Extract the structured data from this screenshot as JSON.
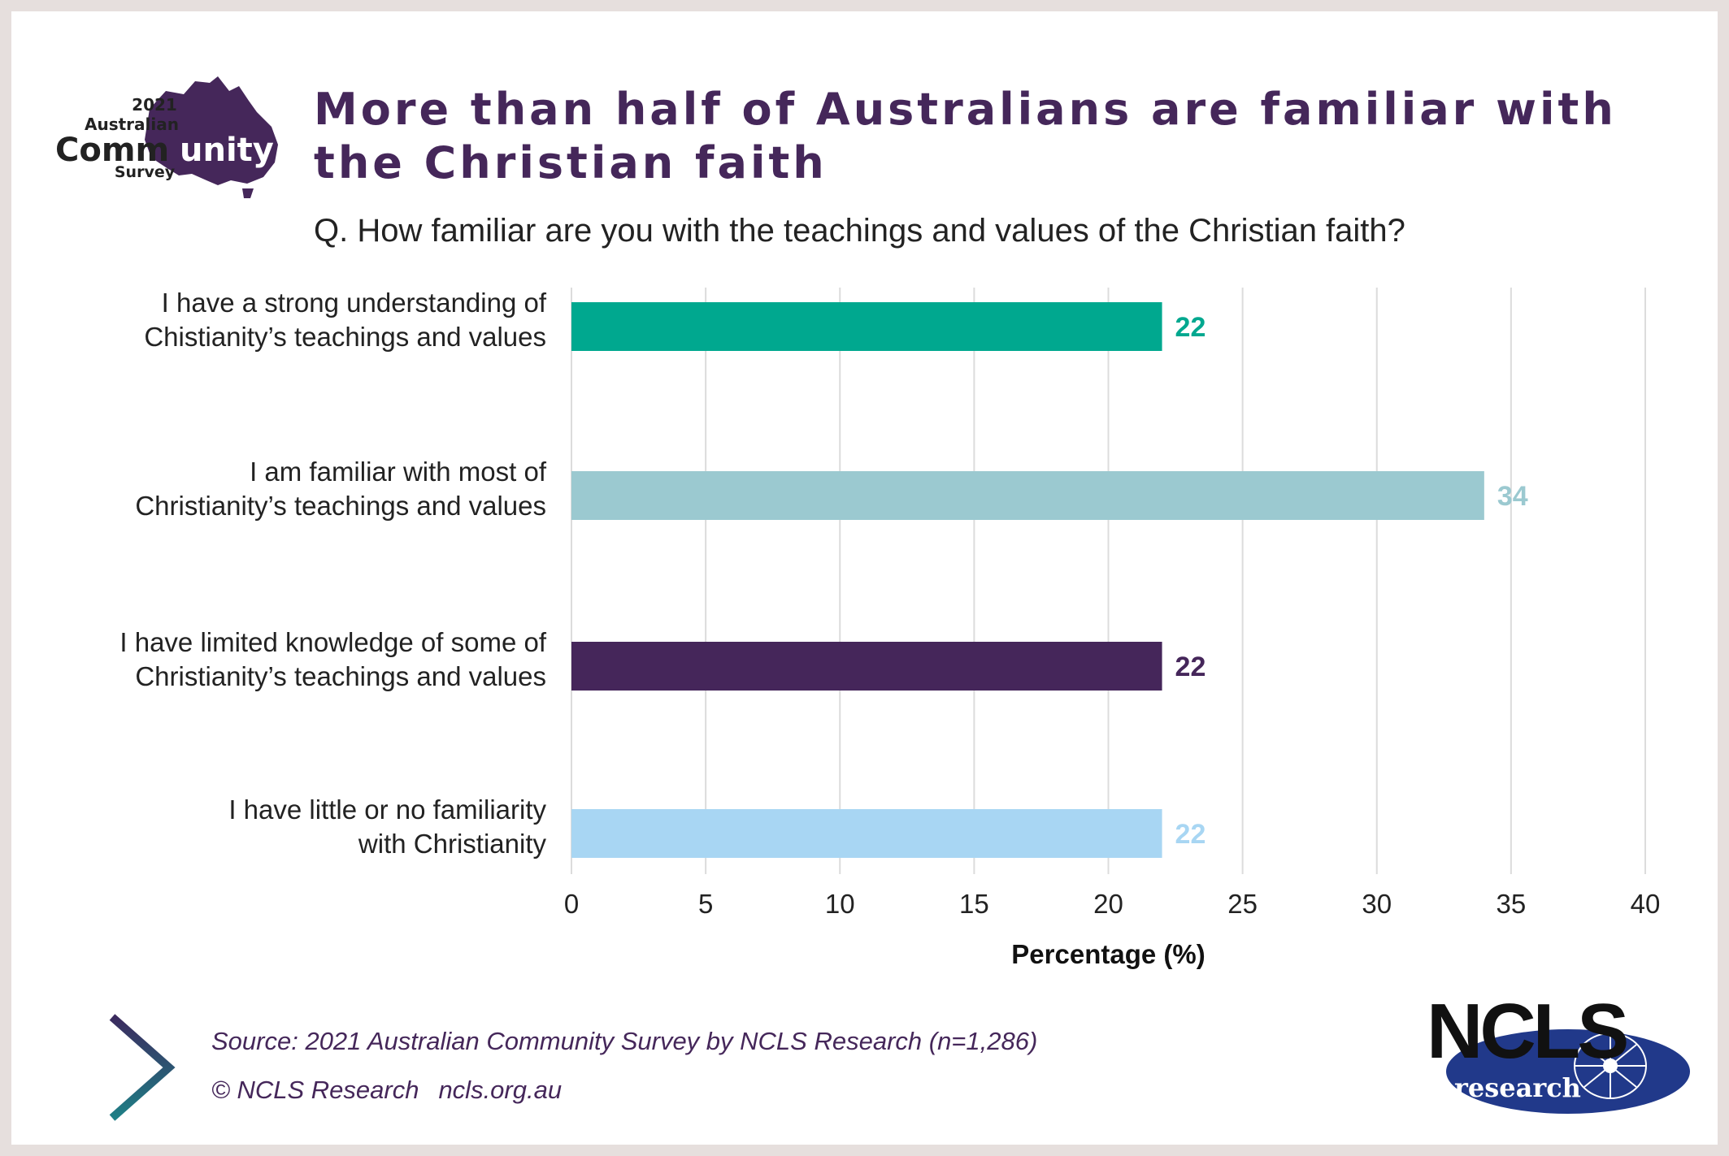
{
  "logo": {
    "year": "2021",
    "line1": "Australian",
    "line2a": "Comm",
    "line2b": "unity",
    "line3": "Survey"
  },
  "title": "More than half of Australians are familiar with the Christian faith",
  "subtitle": "Q. How familiar are you with the teachings and values of the Christian faith?",
  "chart_data": {
    "type": "bar",
    "orientation": "horizontal",
    "title": "More than half of Australians are familiar with the Christian faith",
    "xlabel": "Percentage (%)",
    "ylabel": "",
    "xlim": [
      0,
      40
    ],
    "xticks": [
      0,
      5,
      10,
      15,
      20,
      25,
      30,
      35,
      40
    ],
    "grid": true,
    "legend": "none",
    "categories": [
      [
        "I have a strong understanding of",
        "Chistianity’s teachings and values"
      ],
      [
        "I am familiar with most of",
        "Christianity’s teachings and values"
      ],
      [
        "I have limited knowledge of some of",
        "Christianity’s teachings and values"
      ],
      [
        "I have little or no familiarity",
        "with Christianity"
      ]
    ],
    "values": [
      22,
      34,
      22,
      22
    ],
    "colors": [
      "#00a88f",
      "#9bc9d0",
      "#45265a",
      "#a8d6f3"
    ]
  },
  "footer": {
    "source": "Source: 2021 Australian Community Survey by NCLS Research (n=1,286)",
    "copyright": "© NCLS Research",
    "website": "ncls.org.au"
  },
  "brand": {
    "ncls": "NCLS",
    "research": "research",
    "color_purple": "#45275a",
    "color_navy": "#21398a",
    "color_teal": "#1e7f86"
  }
}
